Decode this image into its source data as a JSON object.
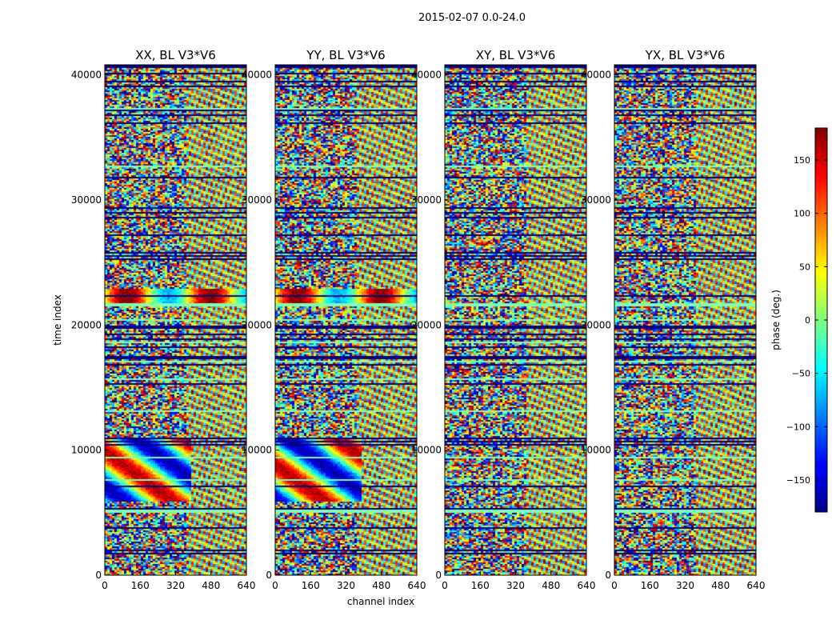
{
  "suptitle": "2015-02-07 0.0-24.0",
  "chart_data": {
    "type": "heatmap",
    "xlabel": "channel index",
    "ylabel": "time index",
    "xlim": [
      0,
      640
    ],
    "ylim": [
      0,
      40800
    ],
    "xticks": [
      0,
      160,
      320,
      480,
      640
    ],
    "yticks": [
      0,
      10000,
      20000,
      30000,
      40000
    ],
    "panels": [
      {
        "title": "XX, BL V3*V6",
        "pol": "XX"
      },
      {
        "title": "YY, BL V3*V6",
        "pol": "YY"
      },
      {
        "title": "XY, BL V3*V6",
        "pol": "XY"
      },
      {
        "title": "YX, BL V3*V6",
        "pol": "YX"
      }
    ],
    "colorbar": {
      "label": "phase (deg.)",
      "range": [
        -180,
        180
      ],
      "ticks": [
        -150,
        -100,
        -50,
        0,
        50,
        100,
        150
      ],
      "colormap": "jet"
    }
  }
}
